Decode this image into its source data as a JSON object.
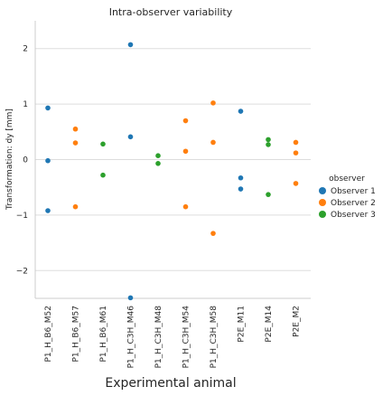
{
  "chart_data": {
    "type": "scatter",
    "title": "Intra-observer variability",
    "xlabel": "Experimental animal",
    "ylabel": "Transformation: dy [mm]",
    "ylim": [
      -2.5,
      2.5
    ],
    "yticks": [
      -2,
      -1,
      0,
      1,
      2
    ],
    "ytick_labels": [
      "−2",
      "−1",
      "0",
      "1",
      "2"
    ],
    "grid": true,
    "categories": [
      "P1_H_B6_M52",
      "P1_H_B6_M57",
      "P1_H_B6_M61",
      "P1_H_C3H_M46",
      "P1_H_C3H_M48",
      "P1_H_C3H_M54",
      "P1_H_C3H_M58",
      "P2E_M11",
      "P2E_M14",
      "P2E_M2"
    ],
    "legend": {
      "title": "observer",
      "placement": "right"
    },
    "series": [
      {
        "name": "Observer 1",
        "color": "#1f77b4",
        "points": [
          {
            "category": "P1_H_B6_M52",
            "y": 0.93
          },
          {
            "category": "P1_H_B6_M52",
            "y": -0.02
          },
          {
            "category": "P1_H_B6_M52",
            "y": -0.92
          },
          {
            "category": "P1_H_C3H_M46",
            "y": 2.07
          },
          {
            "category": "P1_H_C3H_M46",
            "y": 0.41
          },
          {
            "category": "P1_H_C3H_M46",
            "y": -2.49
          },
          {
            "category": "P2E_M11",
            "y": 0.87
          },
          {
            "category": "P2E_M11",
            "y": -0.33
          },
          {
            "category": "P2E_M11",
            "y": -0.53
          }
        ]
      },
      {
        "name": "Observer 2",
        "color": "#ff7f0e",
        "points": [
          {
            "category": "P1_H_B6_M57",
            "y": 0.55
          },
          {
            "category": "P1_H_B6_M57",
            "y": 0.3
          },
          {
            "category": "P1_H_B6_M57",
            "y": -0.85
          },
          {
            "category": "P1_H_C3H_M54",
            "y": 0.7
          },
          {
            "category": "P1_H_C3H_M54",
            "y": 0.15
          },
          {
            "category": "P1_H_C3H_M54",
            "y": -0.85
          },
          {
            "category": "P1_H_C3H_M58",
            "y": 1.02
          },
          {
            "category": "P1_H_C3H_M58",
            "y": 0.31
          },
          {
            "category": "P1_H_C3H_M58",
            "y": -1.33
          },
          {
            "category": "P2E_M2",
            "y": 0.31
          },
          {
            "category": "P2E_M2",
            "y": 0.12
          },
          {
            "category": "P2E_M2",
            "y": -0.43
          }
        ]
      },
      {
        "name": "Observer 3",
        "color": "#2ca02c",
        "points": [
          {
            "category": "P1_H_B6_M61",
            "y": 0.28
          },
          {
            "category": "P1_H_B6_M61",
            "y": -0.28
          },
          {
            "category": "P1_H_C3H_M48",
            "y": 0.07
          },
          {
            "category": "P1_H_C3H_M48",
            "y": -0.07
          },
          {
            "category": "P2E_M14",
            "y": 0.36
          },
          {
            "category": "P2E_M14",
            "y": 0.27
          },
          {
            "category": "P2E_M14",
            "y": -0.63
          }
        ]
      }
    ]
  }
}
